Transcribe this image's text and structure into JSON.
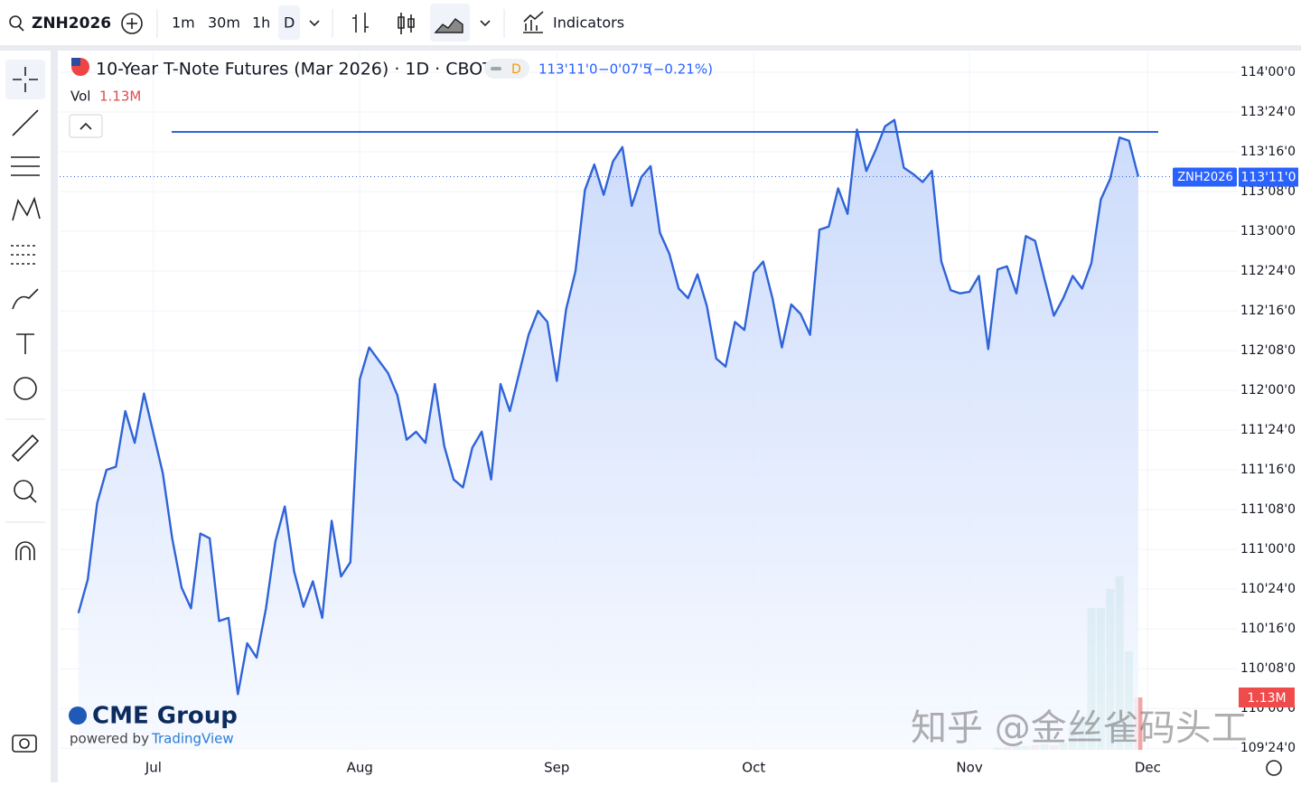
{
  "toolbar": {
    "symbol": "ZNH2026",
    "intervals": [
      "1m",
      "30m",
      "1h",
      "D"
    ],
    "indicators": "Indicators"
  },
  "legend": {
    "title": "10-Year T-Note Futures (Mar 2026) · 1D · CBOT",
    "badge": "D",
    "price": "113'11'0",
    "change": "−0'07'5",
    "change_pct": "(−0.21%)",
    "vol_label": "Vol",
    "vol_value": "1.13M"
  },
  "branding": {
    "logo": "CME Group",
    "powered_by": "powered by",
    "platform": "TradingView"
  },
  "watermark": "知乎 @金丝雀码头工",
  "chart_data": {
    "type": "line",
    "fill": true,
    "color": "#2f63d8",
    "values": [
      110.6,
      110.81,
      111.29,
      111.5,
      111.52,
      111.87,
      111.67,
      111.98,
      111.73,
      111.48,
      111.07,
      110.76,
      110.63,
      111.1,
      111.07,
      110.55,
      110.57,
      110.09,
      110.41,
      110.32,
      110.63,
      111.05,
      111.27,
      110.86,
      110.64,
      110.8,
      110.57,
      111.18,
      110.83,
      110.92,
      112.07,
      112.27,
      112.19,
      112.11,
      111.97,
      111.69,
      111.74,
      111.67,
      112.04,
      111.65,
      111.44,
      111.39,
      111.64,
      111.74,
      111.44,
      112.04,
      111.87,
      112.11,
      112.35,
      112.5,
      112.43,
      112.06,
      112.51,
      112.75,
      113.26,
      113.42,
      113.23,
      113.44,
      113.53,
      113.16,
      113.34,
      113.41,
      112.99,
      112.86,
      112.64,
      112.58,
      112.73,
      112.53,
      112.2,
      112.15,
      112.43,
      112.38,
      112.74,
      112.81,
      112.58,
      112.27,
      112.54,
      112.48,
      112.35,
      113.01,
      113.03,
      113.27,
      113.11,
      113.64,
      113.38,
      113.51,
      113.66,
      113.7,
      113.4,
      113.36,
      113.31,
      113.38,
      112.81,
      112.63,
      112.61,
      112.62,
      112.72,
      112.26,
      112.76,
      112.78,
      112.61,
      112.97,
      112.94,
      112.7,
      112.47,
      112.58,
      112.72,
      112.64,
      112.8,
      113.2,
      113.33,
      113.59,
      113.57,
      113.34375
    ],
    "xlim": [
      -2,
      123.6
    ],
    "xticks": [
      {
        "value": 8,
        "label": "Jul"
      },
      {
        "value": 30,
        "label": "Aug"
      },
      {
        "value": 51,
        "label": "Sep"
      },
      {
        "value": 72,
        "label": "Oct"
      },
      {
        "value": 95,
        "label": "Nov"
      },
      {
        "value": 114,
        "label": "Dec"
      }
    ],
    "ylim": [
      109.74,
      114.125
    ],
    "yticks": [
      {
        "value": 114,
        "label": "114'00'0"
      },
      {
        "value": 113.75,
        "label": "113'24'0"
      },
      {
        "value": 113.5,
        "label": "113'16'0"
      },
      {
        "value": 113.25,
        "label": "113'08'0"
      },
      {
        "value": 113,
        "label": "113'00'0"
      },
      {
        "value": 112.75,
        "label": "112'24'0"
      },
      {
        "value": 112.5,
        "label": "112'16'0"
      },
      {
        "value": 112.25,
        "label": "112'08'0"
      },
      {
        "value": 112,
        "label": "112'00'0"
      },
      {
        "value": 111.75,
        "label": "111'24'0"
      },
      {
        "value": 111.5,
        "label": "111'16'0"
      },
      {
        "value": 111.25,
        "label": "111'08'0"
      },
      {
        "value": 111,
        "label": "111'00'0"
      },
      {
        "value": 110.75,
        "label": "110'24'0"
      },
      {
        "value": 110.5,
        "label": "110'16'0"
      },
      {
        "value": 110.25,
        "label": "110'08'0"
      },
      {
        "value": 110,
        "label": "110'00'0"
      },
      {
        "value": 109.75,
        "label": "109'24'0"
      }
    ],
    "grid": true,
    "horizontal_line": 113.625,
    "last_price": {
      "value": 113.34375,
      "label": "113'11'0",
      "symbol": "ZNH2026"
    },
    "volume": {
      "values": [
        0,
        0,
        0,
        0,
        0,
        0,
        0,
        0,
        0,
        0,
        0,
        0,
        0,
        0,
        0,
        0,
        0,
        0,
        0,
        0,
        0,
        0,
        0,
        0,
        0,
        0,
        0,
        0,
        0,
        0,
        0,
        0,
        0,
        0,
        0,
        0,
        0,
        0,
        0,
        0,
        0,
        0,
        0,
        0,
        0,
        0,
        0,
        0,
        0,
        0,
        0,
        0,
        0,
        0,
        0,
        0,
        0,
        0,
        0,
        0,
        0,
        0,
        0,
        0,
        0,
        0,
        0,
        0,
        0,
        0,
        0,
        0,
        0,
        0,
        0,
        0,
        0,
        0,
        0,
        0,
        0,
        0,
        0,
        0,
        0,
        0,
        0,
        0,
        0,
        0,
        0,
        0,
        0,
        0,
        0,
        0,
        0,
        0,
        50000,
        60000,
        80000,
        80000,
        100000,
        120000,
        100000,
        150000,
        500000,
        700000,
        3060000,
        3060000,
        3470000,
        3740000,
        2120000,
        1130000
      ],
      "colors": [
        "#8fd0c8",
        "#8fd0c8",
        "#8fd0c8",
        "#8fd0c8",
        "#8fd0c8",
        "#8fd0c8",
        "#8fd0c8",
        "#8fd0c8",
        "#8fd0c8",
        "#8fd0c8",
        "#8fd0c8",
        "#8fd0c8",
        "#8fd0c8",
        "#8fd0c8",
        "#8fd0c8",
        "#8fd0c8",
        "#8fd0c8",
        "#8fd0c8",
        "#8fd0c8",
        "#8fd0c8",
        "#8fd0c8",
        "#8fd0c8",
        "#8fd0c8",
        "#8fd0c8",
        "#8fd0c8",
        "#8fd0c8",
        "#8fd0c8",
        "#8fd0c8",
        "#8fd0c8",
        "#8fd0c8",
        "#8fd0c8",
        "#8fd0c8",
        "#8fd0c8",
        "#8fd0c8",
        "#8fd0c8",
        "#8fd0c8",
        "#8fd0c8",
        "#8fd0c8",
        "#8fd0c8",
        "#8fd0c8",
        "#8fd0c8",
        "#8fd0c8",
        "#8fd0c8",
        "#8fd0c8",
        "#8fd0c8",
        "#8fd0c8",
        "#8fd0c8",
        "#8fd0c8",
        "#8fd0c8",
        "#8fd0c8",
        "#8fd0c8",
        "#8fd0c8",
        "#8fd0c8",
        "#8fd0c8",
        "#8fd0c8",
        "#8fd0c8",
        "#8fd0c8",
        "#8fd0c8",
        "#8fd0c8",
        "#8fd0c8",
        "#8fd0c8",
        "#8fd0c8",
        "#8fd0c8",
        "#8fd0c8",
        "#8fd0c8",
        "#8fd0c8",
        "#8fd0c8",
        "#8fd0c8",
        "#8fd0c8",
        "#8fd0c8",
        "#8fd0c8",
        "#8fd0c8",
        "#8fd0c8",
        "#8fd0c8",
        "#8fd0c8",
        "#8fd0c8",
        "#8fd0c8",
        "#8fd0c8",
        "#8fd0c8",
        "#8fd0c8",
        "#8fd0c8",
        "#8fd0c8",
        "#8fd0c8",
        "#8fd0c8",
        "#8fd0c8",
        "#8fd0c8",
        "#8fd0c8",
        "#8fd0c8",
        "#8fd0c8",
        "#8fd0c8",
        "#8fd0c8",
        "#8fd0c8",
        "#8fd0c8",
        "#8fd0c8",
        "#8fd0c8",
        "#8fd0c8",
        "#8fd0c8",
        "#8fd0c8",
        "#8fd0c8",
        "#f5a3a3",
        "#8fd0c8",
        "#8fd0c8",
        "#f5a3a3",
        "#8fd0c8",
        "#f5a3a3",
        "#8fd0c8",
        "#8fd0c8",
        "#8fd0c8",
        "#8fd0c8",
        "#8fd0c8",
        "#8fd0c8",
        "#8fd0c8",
        "#8fd0c8",
        "#f5a3a3"
      ],
      "value_labels": [
        null,
        null,
        null,
        null,
        null,
        null,
        null,
        null,
        null,
        null,
        null,
        null,
        null,
        null,
        null,
        null,
        null,
        null,
        null,
        null,
        null,
        null,
        null,
        null,
        null,
        null,
        null,
        null,
        null,
        null,
        null,
        null,
        null,
        null,
        null,
        null,
        null,
        null,
        null,
        null,
        null,
        null,
        null,
        null,
        null,
        null,
        null,
        null,
        null,
        null,
        null,
        null,
        null,
        null,
        null,
        null,
        null,
        null,
        null,
        null,
        null,
        null,
        null,
        null,
        null,
        null,
        null,
        null,
        null,
        null,
        null,
        null,
        null,
        null,
        null,
        null,
        null,
        null,
        null,
        null,
        null,
        null,
        null,
        null,
        null,
        null,
        null,
        null,
        null,
        null,
        null,
        null,
        null,
        null,
        null,
        null,
        null,
        null,
        null,
        null,
        null,
        null,
        null,
        null,
        null,
        null,
        null,
        null,
        null,
        null,
        null,
        null,
        null,
        "1.13M"
      ]
    }
  }
}
